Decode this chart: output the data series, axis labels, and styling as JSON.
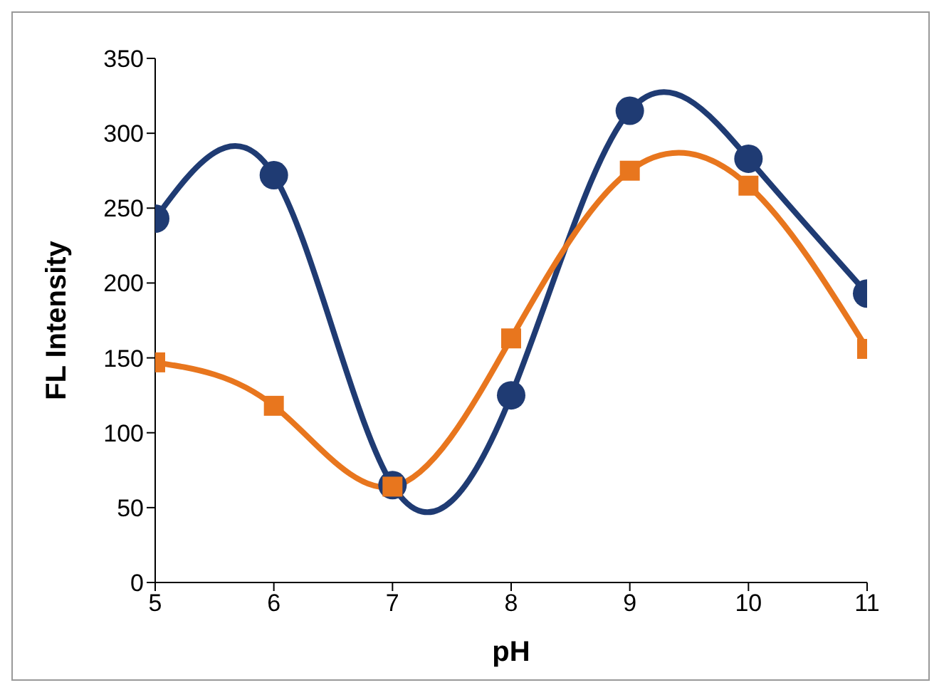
{
  "chart_data": {
    "type": "line",
    "xlabel": "pH",
    "ylabel": "FL Intensity",
    "x": [
      5,
      6,
      7,
      8,
      9,
      10,
      11
    ],
    "series": [
      {
        "color": "#1f3b73",
        "values": [
          243,
          272,
          65,
          125,
          315,
          283,
          193
        ],
        "marker": "circle"
      },
      {
        "color": "#e8761e",
        "values": [
          147,
          118,
          64,
          163,
          275,
          265,
          156
        ],
        "marker": "square"
      }
    ],
    "xlim": [
      5,
      11
    ],
    "xticks": [
      5,
      6,
      7,
      8,
      9,
      10,
      11
    ],
    "ylim": [
      0,
      350
    ],
    "yticks": [
      0,
      50,
      100,
      150,
      200,
      250,
      300,
      350
    ],
    "grid": false,
    "legend": false
  }
}
